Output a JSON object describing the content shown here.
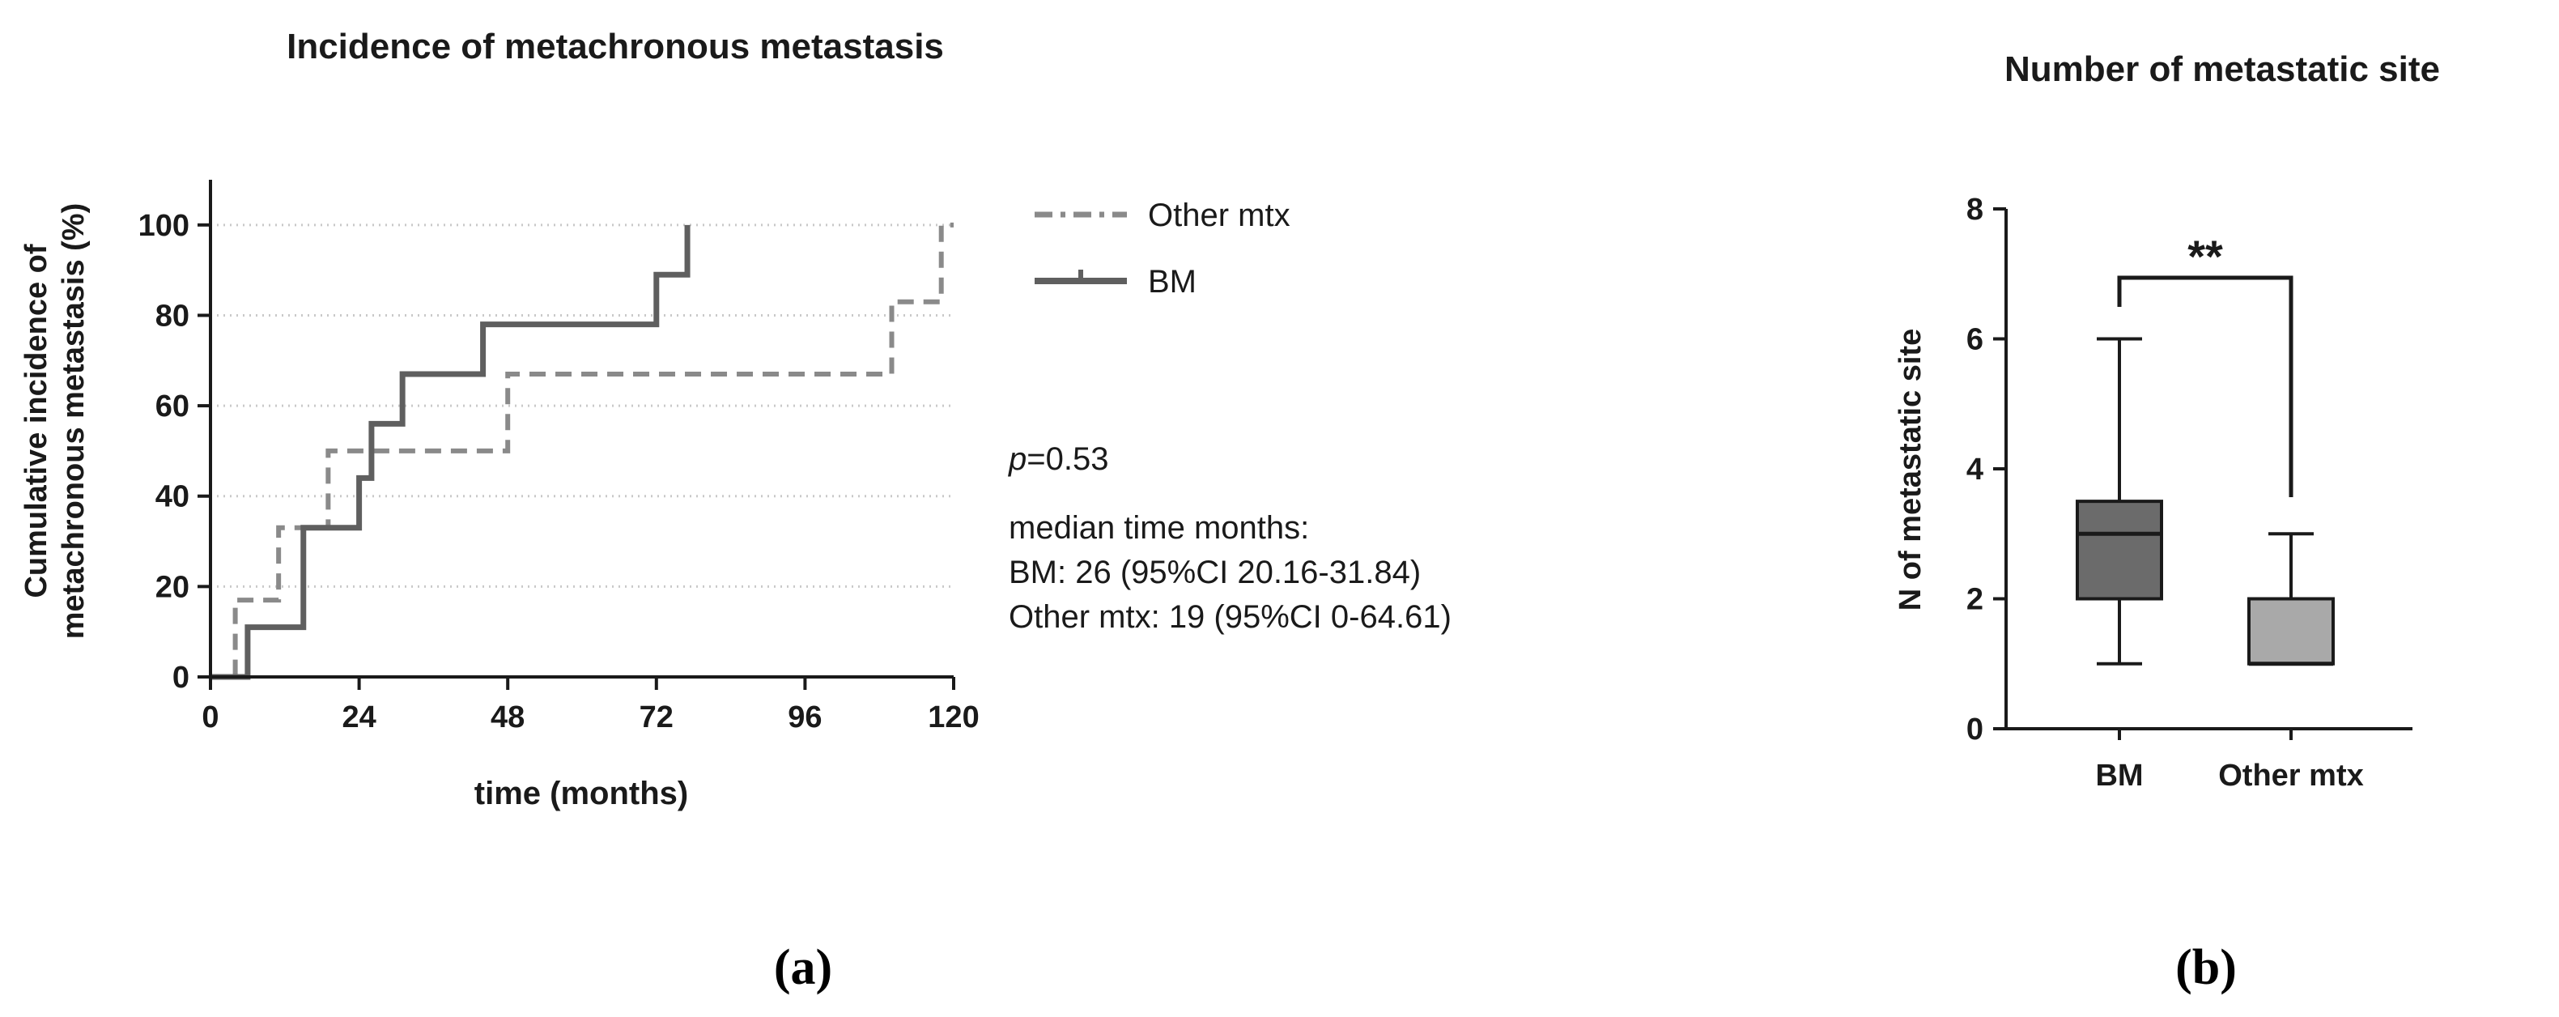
{
  "colors": {
    "bm_line": "#5f5f5f",
    "other_line": "#8a8a8a",
    "grid": "#c9c9c9",
    "axis": "#1a1a1a",
    "bm_box": "#6b6b6b",
    "other_box": "#a9a9a9"
  },
  "panel_a": {
    "panel_label": "(a)",
    "title": "Incidence of metachronous metastasis",
    "ylabel_line1": "Cumulative incidence of",
    "ylabel_line2": "metachronous metastasis (%)",
    "xlabel": "time (months)",
    "legend": {
      "other": "Other mtx",
      "bm": "BM"
    },
    "annotation": {
      "p_symbol": "p",
      "p_value": "=0.53",
      "median_label": "median time months:",
      "bm_line": "BM: 26 (95%CI 20.16-31.84)",
      "other_line": "Other mtx: 19 (95%CI 0-64.61)"
    }
  },
  "panel_b": {
    "panel_label": "(b)",
    "title": "Number of metastatic site",
    "ylabel": "N of metastatic site",
    "significance": "**"
  },
  "chart_data": [
    {
      "type": "line",
      "subtype": "step",
      "title": "Incidence of metachronous metastasis",
      "xlabel": "time (months)",
      "ylabel": "Cumulative incidence of metachronous metastasis (%)",
      "xlim": [
        0,
        120
      ],
      "ylim": [
        0,
        110
      ],
      "xticks": [
        0,
        24,
        48,
        72,
        96,
        120
      ],
      "yticks": [
        0,
        20,
        40,
        60,
        80,
        100
      ],
      "grid": "horizontal dotted",
      "legend_position": "right",
      "series": [
        {
          "name": "Other mtx",
          "style": "dashed",
          "x": [
            0,
            4,
            6,
            11,
            19,
            24,
            48,
            110,
            118,
            120
          ],
          "y": [
            0,
            17,
            17,
            33,
            50,
            50,
            67,
            83,
            100,
            100
          ]
        },
        {
          "name": "BM",
          "style": "solid",
          "x": [
            0,
            6,
            15,
            24,
            26,
            31,
            44,
            72,
            77
          ],
          "y": [
            0,
            11,
            33,
            44,
            56,
            67,
            78,
            89,
            100
          ]
        }
      ]
    },
    {
      "type": "box",
      "title": "Number of metastatic site",
      "ylabel": "N of metastatic site",
      "categories": [
        "BM",
        "Other mtx"
      ],
      "ylim": [
        0,
        8
      ],
      "yticks": [
        0,
        2,
        4,
        6,
        8
      ],
      "boxes": [
        {
          "name": "BM",
          "min": 1,
          "q1": 2,
          "median": 3,
          "q3": 3.5,
          "max": 6
        },
        {
          "name": "Other mtx",
          "min": 1,
          "q1": 1,
          "median": 1,
          "q3": 2,
          "max": 3
        }
      ],
      "significance": "**"
    }
  ]
}
